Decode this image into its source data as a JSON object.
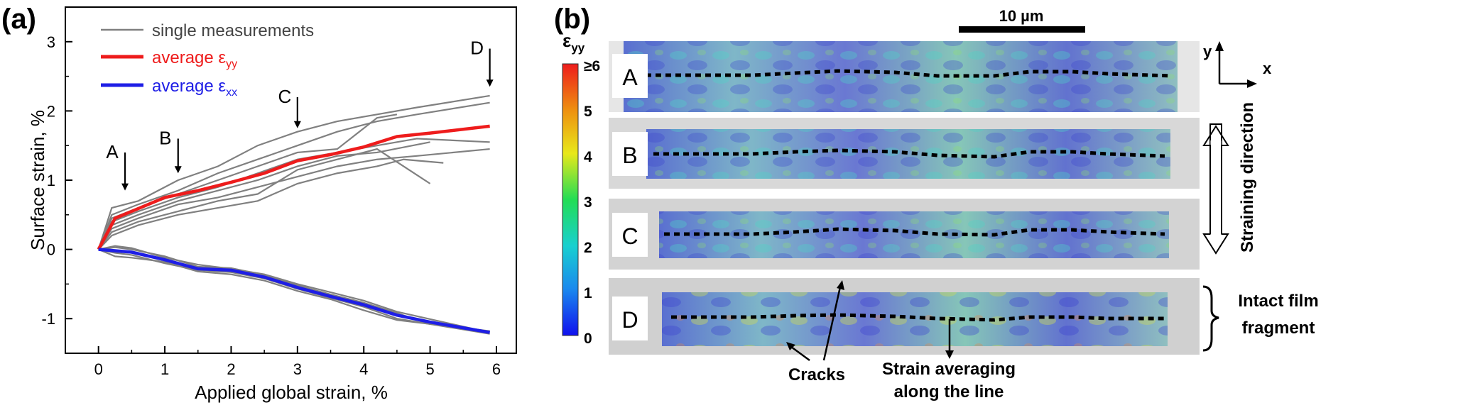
{
  "panel_a": {
    "label": "(a)",
    "chart_data": {
      "type": "line",
      "xlabel": "Applied global strain, %",
      "ylabel": "Surface strain, %",
      "xlim": [
        -0.5,
        6.3
      ],
      "ylim": [
        -1.5,
        3.5
      ],
      "xticks": [
        0,
        1,
        2,
        3,
        4,
        5,
        6
      ],
      "yticks": [
        -1,
        0,
        1,
        2,
        3
      ],
      "legend": {
        "position": "top-left",
        "entries": [
          {
            "label": "single measurements",
            "color": "#808080"
          },
          {
            "label_main": "average ε",
            "label_sub": "yy",
            "color": "#ee1c1c"
          },
          {
            "label_main": "average ε",
            "label_sub": "xx",
            "color": "#1e1ee6"
          }
        ]
      },
      "series": [
        {
          "name": "average εyy",
          "color": "#ee1c1c",
          "x": [
            0,
            0.25,
            0.5,
            1,
            1.5,
            2,
            2.5,
            3,
            3.5,
            4,
            4.5,
            5,
            5.9
          ],
          "y": [
            0,
            0.45,
            0.55,
            0.75,
            0.85,
            0.97,
            1.1,
            1.28,
            1.37,
            1.48,
            1.63,
            1.68,
            1.78
          ]
        },
        {
          "name": "average εxx",
          "color": "#1e1ee6",
          "x": [
            0,
            0.25,
            0.5,
            1,
            1.5,
            2,
            2.5,
            3,
            3.5,
            4,
            4.5,
            5,
            5.9
          ],
          "y": [
            0,
            -0.02,
            -0.04,
            -0.15,
            -0.28,
            -0.3,
            -0.4,
            -0.55,
            -0.68,
            -0.8,
            -0.95,
            -1.05,
            -1.2
          ]
        }
      ],
      "single_measurements": [
        {
          "x": [
            0,
            0.2,
            0.6,
            1.2,
            1.8,
            2.4,
            3,
            3.6,
            4.2,
            4.8,
            5.9
          ],
          "y": [
            0,
            0.6,
            0.7,
            1,
            1.2,
            1.5,
            1.7,
            1.85,
            1.95,
            2.05,
            2.22
          ]
        },
        {
          "x": [
            0,
            0.2,
            0.6,
            1.2,
            1.8,
            2.4,
            3,
            3.6,
            4.2,
            4.8,
            5.9
          ],
          "y": [
            0,
            0.5,
            0.65,
            0.85,
            1.1,
            1.3,
            1.5,
            1.7,
            1.85,
            1.95,
            2.12
          ]
        },
        {
          "x": [
            0,
            0.2,
            0.6,
            1.2,
            1.8,
            2.4,
            3,
            3.6,
            4.2,
            4.5
          ],
          "y": [
            0,
            0.45,
            0.6,
            0.8,
            1,
            1.2,
            1.4,
            1.45,
            1.9,
            1.95
          ]
        },
        {
          "x": [
            0,
            0.2,
            0.6,
            1.2,
            1.8,
            2.4,
            3,
            3.6,
            4.2,
            4.8,
            5.9
          ],
          "y": [
            0,
            0.4,
            0.55,
            0.75,
            0.9,
            1.1,
            1.3,
            1.4,
            1.5,
            1.6,
            1.55
          ]
        },
        {
          "x": [
            0,
            0.2,
            0.6,
            1.2,
            1.8,
            2.4,
            3,
            3.6,
            4.2,
            5
          ],
          "y": [
            0,
            0.35,
            0.5,
            0.7,
            0.85,
            1,
            1.2,
            1.35,
            1.4,
            1.55
          ]
        },
        {
          "x": [
            0,
            0.2,
            0.6,
            1.2,
            1.8,
            2.4,
            3,
            3.6,
            4.2,
            4.8,
            5.9
          ],
          "y": [
            0,
            0.3,
            0.45,
            0.65,
            0.75,
            0.9,
            1.05,
            1.2,
            1.3,
            1.35,
            1.45
          ]
        },
        {
          "x": [
            0,
            0.2,
            0.6,
            1.2,
            1.8,
            2.4,
            3,
            3.6,
            4.2,
            4.6,
            5
          ],
          "y": [
            0,
            0.25,
            0.4,
            0.55,
            0.7,
            0.8,
            1.15,
            1.3,
            1.45,
            1.2,
            0.95
          ]
        },
        {
          "x": [
            0,
            0.2,
            0.6,
            1.2,
            1.8,
            2.4,
            3,
            3.6,
            4.2,
            4.6,
            5.2
          ],
          "y": [
            0,
            0.2,
            0.35,
            0.5,
            0.6,
            0.7,
            0.95,
            1.1,
            1.2,
            1.3,
            1.25
          ]
        },
        {
          "x": [
            0,
            0.25,
            0.5,
            1,
            1.5,
            2,
            2.5,
            3,
            3.5,
            4,
            4.5,
            5.9
          ],
          "y": [
            0,
            -0.05,
            -0.08,
            -0.2,
            -0.3,
            -0.33,
            -0.42,
            -0.57,
            -0.7,
            -0.83,
            -1,
            -1.22
          ]
        },
        {
          "x": [
            0,
            0.25,
            0.5,
            1,
            1.5,
            2,
            2.5,
            3,
            3.5,
            4,
            4.5,
            5
          ],
          "y": [
            0,
            0.03,
            0.0,
            -0.1,
            -0.25,
            -0.27,
            -0.37,
            -0.52,
            -0.65,
            -0.77,
            -0.92,
            -1.08
          ]
        },
        {
          "x": [
            0,
            0.25,
            0.5,
            1,
            1.5,
            2,
            2.5,
            3,
            3.5,
            4,
            4.5,
            5.9
          ],
          "y": [
            0,
            -0.1,
            -0.12,
            -0.18,
            -0.32,
            -0.36,
            -0.45,
            -0.6,
            -0.72,
            -0.88,
            -1.02,
            -1.18
          ]
        },
        {
          "x": [
            0,
            0.25,
            0.5,
            1,
            1.5,
            2,
            2.5,
            3,
            3.5,
            4,
            4.5,
            5.9
          ],
          "y": [
            0,
            0.05,
            0.02,
            -0.12,
            -0.22,
            -0.28,
            -0.36,
            -0.5,
            -0.62,
            -0.74,
            -0.9,
            -1.2
          ]
        }
      ],
      "annotations": [
        {
          "label": "A",
          "x": 0.4,
          "y_from": 1.4,
          "y_to": 0.85
        },
        {
          "label": "B",
          "x": 1.2,
          "y_from": 1.6,
          "y_to": 1.1
        },
        {
          "label": "C",
          "x": 3.0,
          "y_from": 2.2,
          "y_to": 1.75
        },
        {
          "label": "D",
          "x": 5.9,
          "y_from": 2.9,
          "y_to": 2.35
        }
      ]
    }
  },
  "panel_b": {
    "label": "(b)",
    "scalebar_label": "10 µm",
    "colorbar": {
      "title_main": "ε",
      "title_sub": "yy",
      "ticks": [
        "≥6",
        "5",
        "4",
        "3",
        "2",
        "1",
        "0"
      ],
      "colors": [
        "#1010ee",
        "#1a88ee",
        "#18d0d0",
        "#22dd55",
        "#e8e81a",
        "#ee9010",
        "#ee1c1c"
      ]
    },
    "strips": [
      {
        "label": "A"
      },
      {
        "label": "B"
      },
      {
        "label": "C"
      },
      {
        "label": "D"
      }
    ],
    "axes_labels": {
      "y": "y",
      "x": "x"
    },
    "straining_direction": "Straining direction",
    "intact_label_lines": [
      "Intact film",
      "fragment"
    ],
    "cracks_label": "Cracks",
    "averaging_label_lines": [
      "Strain averaging",
      "along the line"
    ]
  }
}
